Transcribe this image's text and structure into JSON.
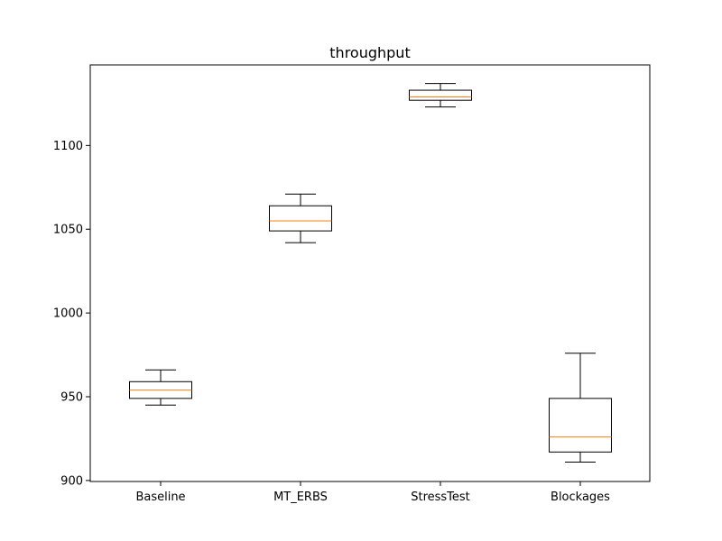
{
  "chart_data": {
    "type": "box",
    "title": "throughput",
    "xlabel": "",
    "ylabel": "",
    "categories": [
      "Baseline",
      "MT_ERBS",
      "StressTest",
      "Blockages"
    ],
    "ylim": [
      899.4,
      1148.1
    ],
    "yticks": [
      900,
      950,
      1000,
      1050,
      1100
    ],
    "ytick_labels": [
      "900",
      "950",
      "1000",
      "1050",
      "1100"
    ],
    "grid": false,
    "boxes": [
      {
        "category": "Baseline",
        "whisker_low": 945,
        "q1": 949,
        "median": 954,
        "q3": 959,
        "whisker_high": 966
      },
      {
        "category": "MT_ERBS",
        "whisker_low": 1042,
        "q1": 1049,
        "median": 1055,
        "q3": 1064,
        "whisker_high": 1071
      },
      {
        "category": "StressTest",
        "whisker_low": 1123,
        "q1": 1127,
        "median": 1129,
        "q3": 1133,
        "whisker_high": 1137
      },
      {
        "category": "Blockages",
        "whisker_low": 911,
        "q1": 917,
        "median": 926,
        "q3": 949,
        "whisker_high": 976
      }
    ],
    "colors": {
      "box": "#000000",
      "median": "#ff7f0e",
      "axis": "#000000"
    }
  }
}
